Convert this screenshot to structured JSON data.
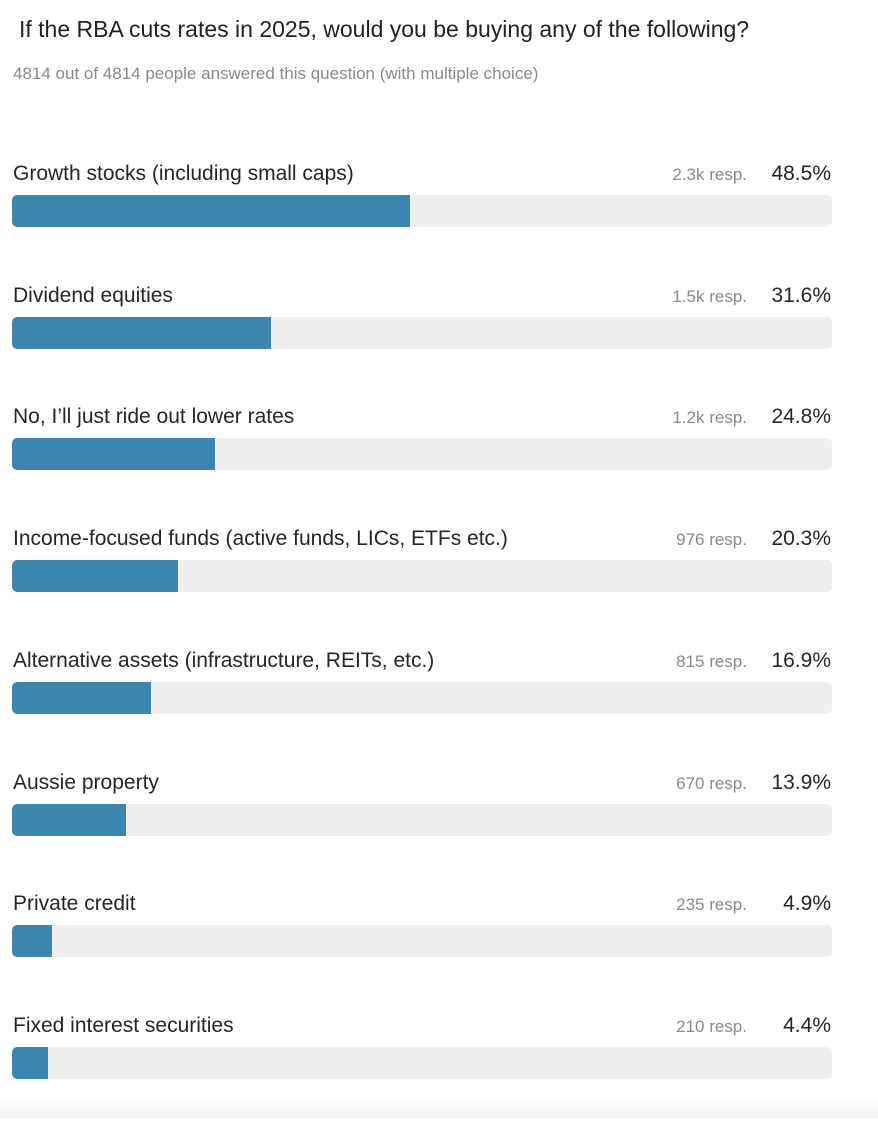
{
  "poll": {
    "question": "If the RBA cuts rates in 2025, would you be buying any of the following?",
    "answered": "4814 out of 4814 people answered this question (with multiple choice)"
  },
  "colors": {
    "bar_fill": "#3a86ae",
    "bar_track": "#efefef"
  },
  "chart_data": {
    "type": "bar",
    "orientation": "horizontal",
    "title": "If the RBA cuts rates in 2025, would you be buying any of the following?",
    "xlim": [
      0,
      100
    ],
    "grid": false,
    "categories": [
      "Growth stocks (including small caps)",
      "Dividend equities",
      "No, I’ll just ride out lower rates",
      "Income-focused funds (active funds, LICs, ETFs etc.)",
      "Alternative assets (infrastructure, REITs, etc.)",
      "Aussie property",
      "Private credit",
      "Fixed interest securities"
    ],
    "values": [
      48.5,
      31.6,
      24.8,
      20.3,
      16.9,
      13.9,
      4.9,
      4.4
    ],
    "responses": [
      "2.3k resp.",
      "1.5k resp.",
      "1.2k resp.",
      "976 resp.",
      "815 resp.",
      "670 resp.",
      "235 resp.",
      "210 resp."
    ],
    "value_labels": [
      "48.5%",
      "31.6%",
      "24.8%",
      "20.3%",
      "16.9%",
      "13.9%",
      "4.9%",
      "4.4%"
    ]
  }
}
